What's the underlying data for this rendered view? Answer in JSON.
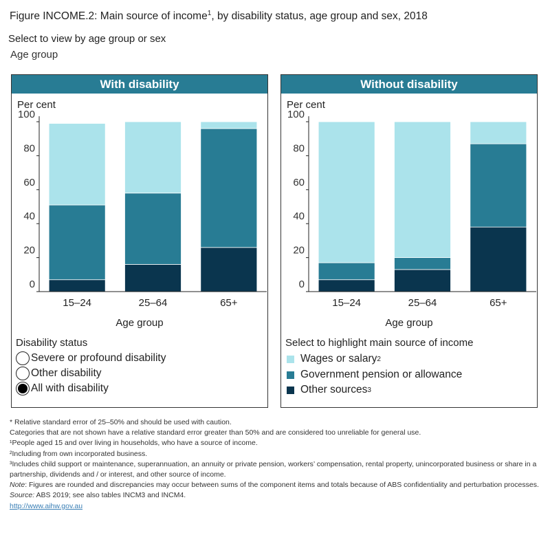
{
  "title": "Figure INCOME.2: Main source of income",
  "title_sup": "1",
  "title_rest": ", by disability status, age group and sex, 2018",
  "selector": {
    "label": "Select to view by age group or sex",
    "value": "Age group"
  },
  "colors": {
    "wages": "#abe3eb",
    "government": "#287c94",
    "other": "#0a354e",
    "header": "#287c94"
  },
  "chart_data": [
    {
      "type": "bar",
      "stacked": true,
      "title": "With disability",
      "ylabel": "Per cent",
      "xlabel": "Age group",
      "ylim": [
        0,
        100
      ],
      "yticks": [
        "0",
        "20",
        "40",
        "60",
        "80",
        "100"
      ],
      "categories": [
        "15–24",
        "25–64",
        "65+"
      ],
      "series": [
        {
          "name": "Other sources",
          "values": [
            7,
            16,
            26
          ]
        },
        {
          "name": "Government pension or allowance",
          "values": [
            44,
            42,
            70
          ]
        },
        {
          "name": "Wages or salary",
          "values": [
            48,
            42,
            4
          ]
        }
      ]
    },
    {
      "type": "bar",
      "stacked": true,
      "title": "Without disability",
      "ylabel": "Per cent",
      "xlabel": "Age group",
      "ylim": [
        0,
        100
      ],
      "yticks": [
        "0",
        "20",
        "40",
        "60",
        "80",
        "100"
      ],
      "categories": [
        "15–24",
        "25–64",
        "65+"
      ],
      "series": [
        {
          "name": "Other sources",
          "values": [
            7,
            13,
            38
          ]
        },
        {
          "name": "Government pension or allowance",
          "values": [
            10,
            7,
            49
          ]
        },
        {
          "name": "Wages or salary",
          "values": [
            83,
            80,
            13
          ]
        }
      ]
    }
  ],
  "disability_status": {
    "title": "Disability status",
    "options": [
      {
        "label": "Severe or profound disability",
        "selected": false
      },
      {
        "label": "Other disability",
        "selected": false
      },
      {
        "label": "All with disability",
        "selected": true
      }
    ]
  },
  "legend": {
    "title": "Select to highlight main source of income",
    "items": [
      {
        "label": "Wages or salary",
        "sup": "2",
        "key": "wages"
      },
      {
        "label": "Government pension or allowance",
        "sup": "",
        "key": "government"
      },
      {
        "label": "Other sources",
        "sup": "3",
        "key": "other"
      }
    ]
  },
  "footnotes": {
    "rse": "* Relative standard error of 25–50% and should be used with caution.",
    "categories": "Categories that are not shown have a relative standard error greater than 50% and are considered too unreliable for general use.",
    "n1": "¹People aged 15 and over living in households, who have a source of income.",
    "n2": "²Including from own incorporated business.",
    "n3": "³Includes child support or maintenance, superannuation, an annuity or private pension, workers’ compensation, rental property, unincorporated business or share in a partnership, dividends and / or interest, and other source of income.",
    "note_label": "Note",
    "note": ": Figures are rounded and discrepancies may occur between sums of the component items and totals because of ABS confidentiality and perturbation processes.",
    "source_label": "Source:",
    "source": " ABS 2019; see also tables INCM3 and INCM4.",
    "link": "http://www.aihw.gov.au"
  }
}
